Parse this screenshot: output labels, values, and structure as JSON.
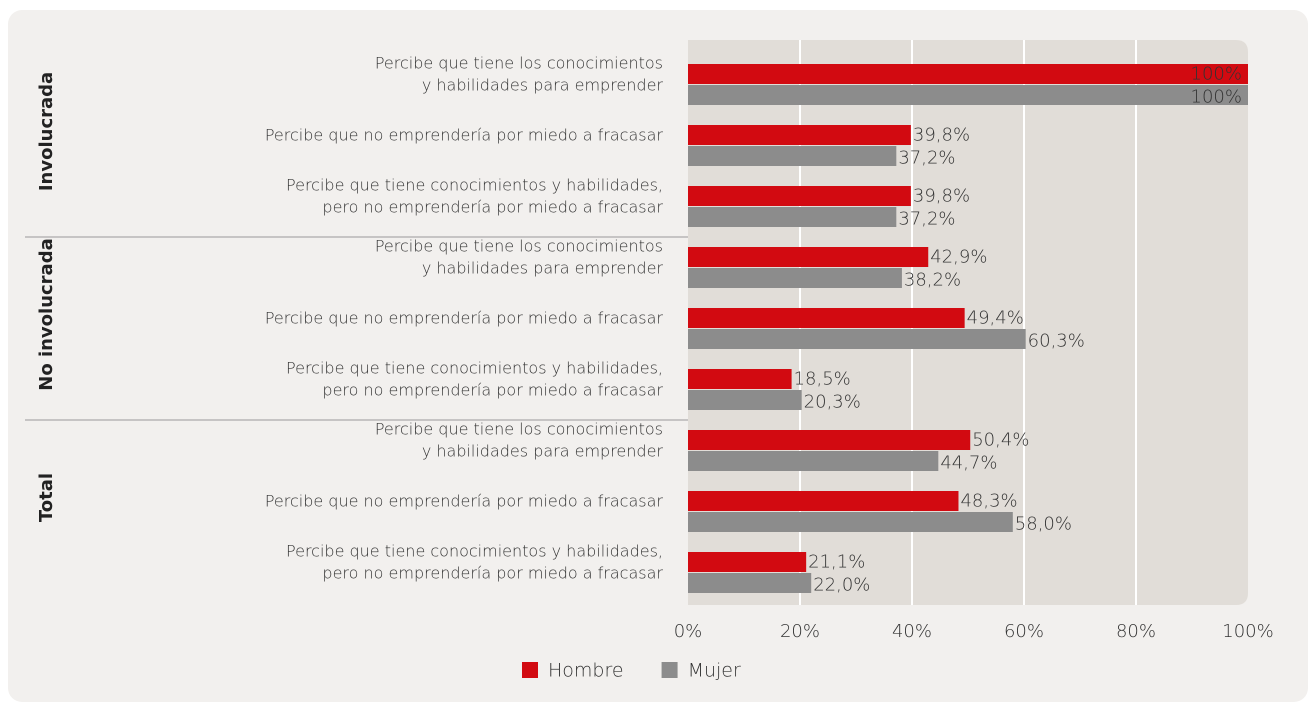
{
  "chart_data": {
    "type": "grouped-hbar",
    "groups": [
      "Involucrada",
      "No involucrada",
      "Total"
    ],
    "categories": [
      [
        "Percibe que tiene los conocimientos",
        "y habilidades para emprender"
      ],
      [
        "Percibe que no emprendería por miedo a fracasar"
      ],
      [
        "Percibe que tiene conocimientos y habilidades,",
        "pero no emprendería por miedo a fracasar"
      ],
      [
        "Percibe que tiene los conocimientos",
        "y habilidades para emprender"
      ],
      [
        "Percibe que no emprendería por miedo a fracasar"
      ],
      [
        "Percibe que tiene conocimientos y habilidades,",
        "pero no emprendería por miedo a fracasar"
      ],
      [
        "Percibe que tiene los conocimientos",
        "y habilidades para emprender"
      ],
      [
        "Percibe que no emprendería por miedo a fracasar"
      ],
      [
        "Percibe que tiene conocimientos y habilidades,",
        "pero no emprendería por miedo a fracasar"
      ]
    ],
    "series": [
      {
        "name": "Hombre",
        "color": "#d20a11",
        "values": [
          100,
          39.8,
          39.8,
          42.9,
          49.4,
          18.5,
          50.4,
          48.3,
          21.1
        ],
        "value_labels": [
          "100%",
          "39,8%",
          "39,8%",
          "42,9%",
          "49,4%",
          "18,5%",
          "50,4%",
          "48,3%",
          "21,1%"
        ]
      },
      {
        "name": "Mujer",
        "color": "#8c8c8c",
        "values": [
          100,
          37.2,
          37.2,
          38.2,
          60.3,
          20.3,
          44.7,
          58.0,
          22.0
        ],
        "value_labels": [
          "100%",
          "37,2%",
          "37,2%",
          "38,2%",
          "60,3%",
          "20,3%",
          "44,7%",
          "58,0%",
          "22,0%"
        ]
      }
    ],
    "xlim": [
      0,
      100
    ],
    "xticks": [
      {
        "value": 0,
        "label": "0%"
      },
      {
        "value": 20,
        "label": "20%"
      },
      {
        "value": 40,
        "label": "40%"
      },
      {
        "value": 60,
        "label": "60%"
      },
      {
        "value": 80,
        "label": "80%"
      },
      {
        "value": 100,
        "label": "100%"
      }
    ],
    "grid": true,
    "legend": "bottom"
  }
}
